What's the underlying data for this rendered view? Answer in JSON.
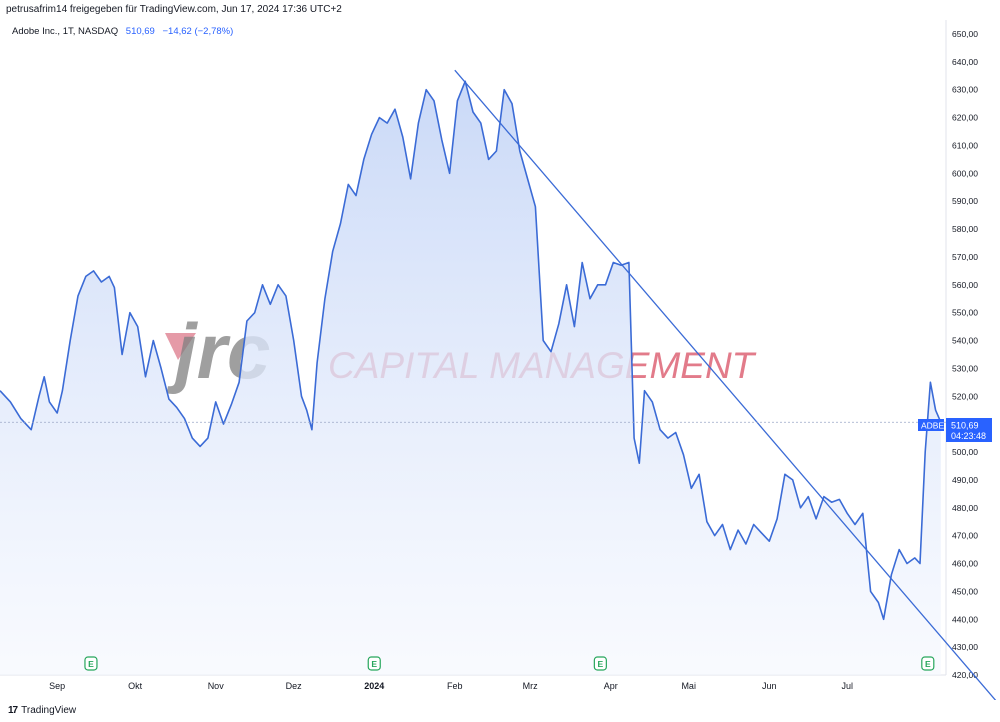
{
  "header": {
    "attribution": "petrusafrim14 freigegeben für TradingView.com, Jun 17, 2024 17:36 UTC+2"
  },
  "legend": {
    "symbol": "Adobe Inc., 1T, NASDAQ",
    "last": "510,69",
    "change": "−14,62 (−2,78%)"
  },
  "price_badge": {
    "ticker": "ADBE",
    "price": "510,69",
    "countdown": "04:23:48"
  },
  "watermark": {
    "logo_text": "jrc",
    "company": "CAPITAL MANAGEMENT"
  },
  "footer": {
    "logo": "17",
    "brand": "TradingView"
  },
  "colors": {
    "line": "#3b6bd6",
    "area_top": "#c7d7f7",
    "area_bottom": "#f4f7fe",
    "badge": "#2962ff",
    "watermark_grey": "#5a5a5a",
    "watermark_red": "#d0233c",
    "earnings_marker": "#26a65b"
  },
  "chart_data": {
    "type": "area",
    "title": "Adobe Inc., 1T, NASDAQ",
    "ylim": [
      420,
      655
    ],
    "y_ticks": [
      650,
      640,
      630,
      620,
      610,
      600,
      590,
      580,
      570,
      560,
      550,
      540,
      530,
      520,
      510,
      500,
      490,
      480,
      470,
      460,
      450,
      440,
      430,
      420
    ],
    "y_tick_labels": [
      "650,00",
      "640,00",
      "630,00",
      "620,00",
      "610,00",
      "600,00",
      "590,00",
      "580,00",
      "570,00",
      "560,00",
      "550,00",
      "540,00",
      "530,00",
      "520,00",
      "510,00",
      "500,00",
      "490,00",
      "480,00",
      "470,00",
      "460,00",
      "450,00",
      "440,00",
      "430,00",
      "420,00"
    ],
    "x_ticks": [
      {
        "label": "Sep",
        "t": 10
      },
      {
        "label": "Okt",
        "t": 40
      },
      {
        "label": "Nov",
        "t": 71
      },
      {
        "label": "Dez",
        "t": 101
      },
      {
        "label": "2024",
        "t": 132
      },
      {
        "label": "Feb",
        "t": 163
      },
      {
        "label": "Mrz",
        "t": 192
      },
      {
        "label": "Apr",
        "t": 223
      },
      {
        "label": "Mai",
        "t": 253
      },
      {
        "label": "Jun",
        "t": 284
      },
      {
        "label": "Jul",
        "t": 314
      }
    ],
    "xlim": [
      -12,
      352
    ],
    "series": [
      {
        "values": [
          [
            -12,
            522
          ],
          [
            -8,
            518
          ],
          [
            -4,
            512
          ],
          [
            0,
            508
          ],
          [
            3,
            520
          ],
          [
            5,
            527
          ],
          [
            7,
            518
          ],
          [
            10,
            514
          ],
          [
            12,
            522
          ],
          [
            15,
            540
          ],
          [
            18,
            556
          ],
          [
            21,
            563
          ],
          [
            24,
            565
          ],
          [
            27,
            561
          ],
          [
            30,
            563
          ],
          [
            32,
            559
          ],
          [
            35,
            535
          ],
          [
            38,
            550
          ],
          [
            41,
            545
          ],
          [
            44,
            527
          ],
          [
            47,
            540
          ],
          [
            50,
            530
          ],
          [
            53,
            519
          ],
          [
            56,
            516
          ],
          [
            59,
            512
          ],
          [
            62,
            505
          ],
          [
            65,
            502
          ],
          [
            68,
            505
          ],
          [
            71,
            518
          ],
          [
            74,
            510
          ],
          [
            77,
            517
          ],
          [
            80,
            525
          ],
          [
            83,
            547
          ],
          [
            86,
            550
          ],
          [
            89,
            560
          ],
          [
            92,
            553
          ],
          [
            95,
            560
          ],
          [
            98,
            556
          ],
          [
            101,
            540
          ],
          [
            104,
            520
          ],
          [
            106,
            515
          ],
          [
            108,
            508
          ],
          [
            110,
            532
          ],
          [
            113,
            555
          ],
          [
            116,
            572
          ],
          [
            119,
            582
          ],
          [
            122,
            596
          ],
          [
            125,
            592
          ],
          [
            128,
            605
          ],
          [
            131,
            614
          ],
          [
            134,
            620
          ],
          [
            137,
            618
          ],
          [
            140,
            623
          ],
          [
            143,
            613
          ],
          [
            146,
            598
          ],
          [
            149,
            618
          ],
          [
            152,
            630
          ],
          [
            155,
            626
          ],
          [
            158,
            612
          ],
          [
            161,
            600
          ],
          [
            164,
            626
          ],
          [
            167,
            633
          ],
          [
            170,
            622
          ],
          [
            173,
            618
          ],
          [
            176,
            605
          ],
          [
            179,
            608
          ],
          [
            182,
            630
          ],
          [
            185,
            625
          ],
          [
            188,
            608
          ],
          [
            191,
            598
          ],
          [
            194,
            588
          ],
          [
            197,
            540
          ],
          [
            200,
            536
          ],
          [
            203,
            546
          ],
          [
            206,
            560
          ],
          [
            209,
            545
          ],
          [
            212,
            568
          ],
          [
            215,
            555
          ],
          [
            218,
            560
          ],
          [
            221,
            560
          ],
          [
            224,
            568
          ],
          [
            227,
            567
          ],
          [
            230,
            568
          ],
          [
            232,
            505
          ],
          [
            234,
            496
          ],
          [
            236,
            522
          ],
          [
            239,
            518
          ],
          [
            242,
            508
          ],
          [
            245,
            505
          ],
          [
            248,
            507
          ],
          [
            251,
            499
          ],
          [
            254,
            487
          ],
          [
            257,
            492
          ],
          [
            260,
            475
          ],
          [
            263,
            470
          ],
          [
            266,
            474
          ],
          [
            269,
            465
          ],
          [
            272,
            472
          ],
          [
            275,
            467
          ],
          [
            278,
            474
          ],
          [
            281,
            471
          ],
          [
            284,
            468
          ],
          [
            287,
            476
          ],
          [
            290,
            492
          ],
          [
            293,
            490
          ],
          [
            296,
            480
          ],
          [
            299,
            484
          ],
          [
            302,
            476
          ],
          [
            305,
            484
          ],
          [
            308,
            482
          ],
          [
            311,
            483
          ],
          [
            314,
            478
          ],
          [
            317,
            474
          ],
          [
            320,
            478
          ],
          [
            323,
            450
          ],
          [
            326,
            446
          ],
          [
            328,
            440
          ],
          [
            331,
            456
          ],
          [
            334,
            465
          ],
          [
            337,
            460
          ],
          [
            340,
            462
          ],
          [
            342,
            460
          ],
          [
            344,
            500
          ],
          [
            346,
            525
          ],
          [
            348,
            515
          ],
          [
            350,
            510.69
          ]
        ]
      }
    ],
    "annotations": {
      "trendline": [
        [
          163,
          637
        ],
        [
          348,
          436
        ]
      ],
      "last_price": 510.69,
      "earnings_markers_t": [
        23,
        132,
        219,
        345
      ]
    }
  }
}
